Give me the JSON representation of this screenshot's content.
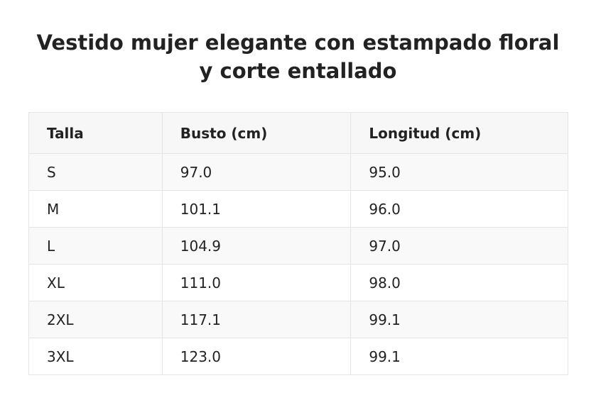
{
  "title": "Vestido mujer elegante con estampado floral y corte entallado",
  "table": {
    "headers": [
      "Talla",
      "Busto (cm)",
      "Longitud (cm)"
    ],
    "rows": [
      [
        "S",
        "97.0",
        "95.0"
      ],
      [
        "M",
        "101.1",
        "96.0"
      ],
      [
        "L",
        "104.9",
        "97.0"
      ],
      [
        "XL",
        "111.0",
        "98.0"
      ],
      [
        "2XL",
        "117.1",
        "99.1"
      ],
      [
        "3XL",
        "123.0",
        "99.1"
      ]
    ]
  },
  "colors": {
    "text": "#222222",
    "header_bg": "#f7f7f7",
    "stripe_bg": "#f9f9f9",
    "border": "#e5e5e5"
  }
}
